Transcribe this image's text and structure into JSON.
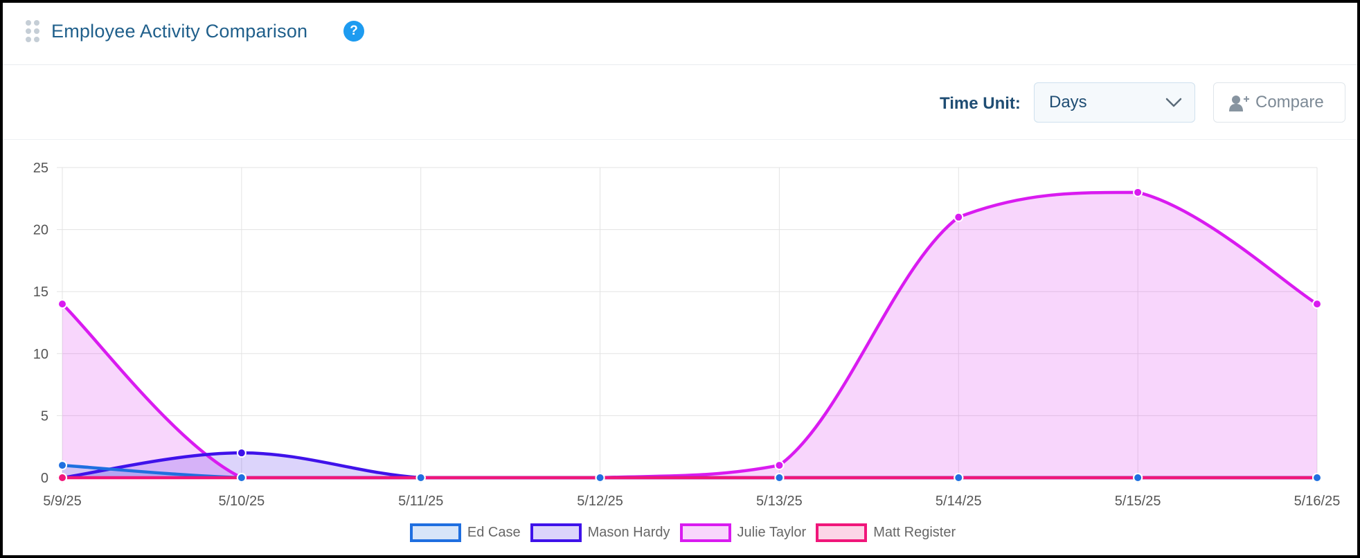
{
  "header": {
    "title": "Employee Activity Comparison",
    "help_glyph": "?",
    "icons": {
      "drag": "drag-handle-icon",
      "help": "question-circle-icon"
    }
  },
  "toolbar": {
    "time_unit_label": "Time Unit:",
    "time_unit_value": "Days",
    "compare_label": "Compare",
    "icons": {
      "select": "chevron-down-icon",
      "compare": "user-plus-icon"
    }
  },
  "colors": {
    "title": "#1f5f8b",
    "help": "#1d9bf0",
    "Ed Case": "#1f6fe0",
    "Mason Hardy": "#3f12ea",
    "Julie Taylor": "#d91bf0",
    "Matt Register": "#f0167a"
  },
  "chart_data": {
    "type": "area",
    "x": [
      "5/9/25",
      "5/10/25",
      "5/11/25",
      "5/12/25",
      "5/13/25",
      "5/14/25",
      "5/15/25",
      "5/16/25"
    ],
    "ylim": [
      0,
      25
    ],
    "yticks": [
      0,
      5,
      10,
      15,
      20,
      25
    ],
    "grid": true,
    "legend_position": "bottom",
    "series": [
      {
        "name": "Ed Case",
        "values": [
          1,
          0,
          0,
          0,
          0,
          0,
          0,
          0
        ]
      },
      {
        "name": "Mason Hardy",
        "values": [
          0,
          2,
          0,
          0,
          0,
          0,
          0,
          0
        ]
      },
      {
        "name": "Julie Taylor",
        "values": [
          14,
          0,
          0,
          0,
          1,
          21,
          23,
          14
        ]
      },
      {
        "name": "Matt Register",
        "values": [
          0,
          0,
          0,
          0,
          0,
          0,
          0,
          0
        ]
      }
    ]
  }
}
